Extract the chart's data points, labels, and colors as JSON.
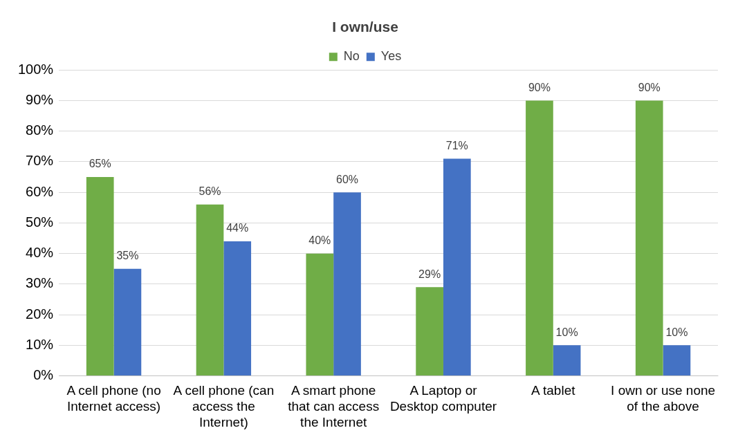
{
  "chart_data": {
    "type": "bar",
    "title": "I own/use",
    "categories": [
      "A cell phone (no Internet access)",
      "A cell phone (can access the Internet)",
      "A smart phone that can access the Internet",
      "A Laptop or Desktop computer",
      "A tablet",
      "I own or use none of the above"
    ],
    "series": [
      {
        "name": "No",
        "color": "#70ad47",
        "values": [
          65,
          56,
          40,
          29,
          90,
          90
        ]
      },
      {
        "name": "Yes",
        "color": "#4472c4",
        "values": [
          35,
          44,
          60,
          71,
          10,
          10
        ]
      }
    ],
    "ylim": [
      0,
      100
    ],
    "yticks": [
      {
        "value": 0,
        "label": "0%"
      },
      {
        "value": 10,
        "label": "10%"
      },
      {
        "value": 20,
        "label": "20%"
      },
      {
        "value": 30,
        "label": "30%"
      },
      {
        "value": 40,
        "label": "40%"
      },
      {
        "value": 50,
        "label": "50%"
      },
      {
        "value": 60,
        "label": "60%"
      },
      {
        "value": 70,
        "label": "70%"
      },
      {
        "value": 80,
        "label": "80%"
      },
      {
        "value": 90,
        "label": "90%"
      },
      {
        "value": 100,
        "label": "100%"
      }
    ],
    "value_labels": [
      [
        "65%",
        "56%",
        "40%",
        "29%",
        "90%",
        "90%"
      ],
      [
        "35%",
        "44%",
        "60%",
        "71%",
        "10%",
        "10%"
      ]
    ],
    "grid": "y",
    "legend": "top"
  }
}
